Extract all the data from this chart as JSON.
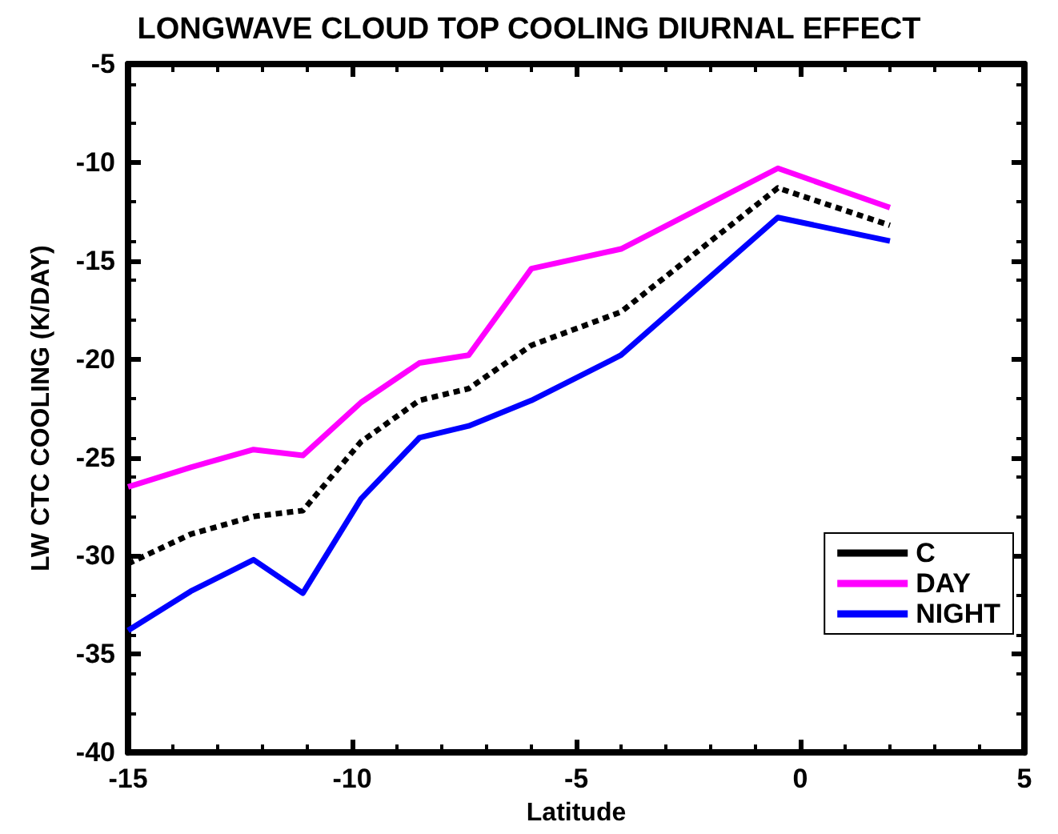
{
  "chart_data": {
    "type": "line",
    "title": "LONGWAVE CLOUD TOP COOLING DIURNAL EFFECT",
    "xlabel": "Latitude",
    "ylabel": "LW CTC COOLING (K/DAY)",
    "x": [
      -15,
      -13.6,
      -12.2,
      -11.1,
      -9.8,
      -8.5,
      -7.4,
      -6,
      -4,
      -0.5,
      2
    ],
    "series": [
      {
        "name": "C",
        "color": "#000000",
        "line_style": "dashed",
        "values": [
          -30.4,
          -28.9,
          -28.0,
          -27.7,
          -24.2,
          -22.1,
          -21.5,
          -19.3,
          -17.6,
          -11.3,
          -13.2
        ]
      },
      {
        "name": "DAY",
        "color": "#ff00ff",
        "line_style": "solid",
        "values": [
          -26.5,
          -25.5,
          -24.6,
          -24.9,
          -22.2,
          -20.2,
          -19.8,
          -15.4,
          -14.4,
          -10.3,
          -12.3
        ]
      },
      {
        "name": "NIGHT",
        "color": "#0000ff",
        "line_style": "solid",
        "values": [
          -33.8,
          -31.8,
          -30.2,
          -31.9,
          -27.1,
          -24.0,
          -23.4,
          -22.1,
          -19.8,
          -12.8,
          -14.0
        ]
      }
    ],
    "xlim": [
      -15,
      5
    ],
    "xticks": [
      -15,
      -10,
      -5,
      0,
      5
    ],
    "ylim": [
      -40,
      -5
    ],
    "yticks": [
      -40,
      -35,
      -30,
      -25,
      -20,
      -15,
      -10,
      -5
    ],
    "grid": false,
    "legend": "bottom right",
    "marker": "none"
  }
}
